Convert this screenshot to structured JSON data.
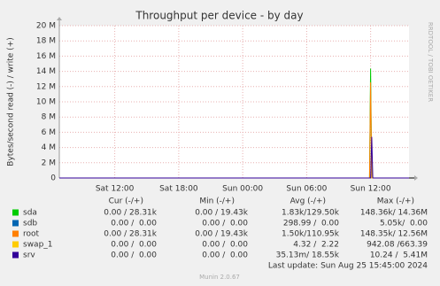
{
  "chart_data": {
    "type": "line",
    "title": "Throughput per device - by day",
    "y_label": "Bytes/second read (-) / write (+)",
    "side_text": "RRDTOOL / TOBI OETIKER",
    "x": [
      6.8,
      35.9,
      36.0,
      36.1,
      36.2,
      39.6
    ],
    "xlim": [
      6.8,
      39.6
    ],
    "xticks": [
      {
        "value": 12,
        "label": "Sat 12:00"
      },
      {
        "value": 18,
        "label": "Sat 18:00"
      },
      {
        "value": 24,
        "label": "Sun 00:00"
      },
      {
        "value": 30,
        "label": "Sun 06:00"
      },
      {
        "value": 36,
        "label": "Sun 12:00"
      }
    ],
    "ylim": [
      0,
      20000000
    ],
    "yticks": [
      0,
      {
        "value": 2000000,
        "label": "2 M"
      },
      {
        "value": 4000000,
        "label": "4 M"
      },
      {
        "value": 6000000,
        "label": "6 M"
      },
      {
        "value": 8000000,
        "label": "8 M"
      },
      {
        "value": 10000000,
        "label": "10 M"
      },
      {
        "value": 12000000,
        "label": "12 M"
      },
      {
        "value": 14000000,
        "label": "14 M"
      },
      {
        "value": 16000000,
        "label": "16 M"
      },
      {
        "value": 18000000,
        "label": "18 M"
      },
      {
        "value": 20000000,
        "label": "20 M"
      }
    ],
    "grid": true,
    "columns": [
      "Cur (-/+)",
      "Min (-/+)",
      "Avg (-/+)",
      "Max (-/+)"
    ],
    "series": [
      {
        "name": "sda",
        "color": "#00cc00",
        "values": [
          0,
          0,
          14360000,
          0,
          0,
          0
        ],
        "stats": [
          "0.00 / 28.31k",
          "0.00 / 19.43k",
          "1.83k/129.50k",
          "148.36k/ 14.36M"
        ]
      },
      {
        "name": "sdb",
        "color": "#0066b3",
        "values": [
          0,
          0,
          0,
          0,
          0,
          0
        ],
        "stats": [
          "0.00 /  0.00",
          "0.00 /  0.00",
          "298.99 /  0.00",
          "5.05k/  0.00"
        ]
      },
      {
        "name": "root",
        "color": "#ff8000",
        "values": [
          0,
          0,
          12560000,
          0,
          0,
          0
        ],
        "stats": [
          "0.00 / 28.31k",
          "0.00 / 19.43k",
          "1.50k/110.95k",
          "148.35k/ 12.56M"
        ]
      },
      {
        "name": "swap_1",
        "color": "#ffcc00",
        "values": [
          0,
          0,
          0,
          0,
          0,
          0
        ],
        "stats": [
          "0.00 /  0.00",
          "0.00 /  0.00",
          "4.32 /  2.22",
          "942.08 /663.39"
        ]
      },
      {
        "name": "srv",
        "color": "#330099",
        "values": [
          0,
          0,
          0,
          5410000,
          0,
          0
        ],
        "stats": [
          "0.00 /  0.00",
          "0.00 /  0.00",
          "35.13m/ 18.55k",
          "10.24 /  5.41M"
        ]
      }
    ],
    "last_update": "Last update: Sun Aug 25 15:45:00 2024",
    "footer": "Munin 2.0.67"
  }
}
